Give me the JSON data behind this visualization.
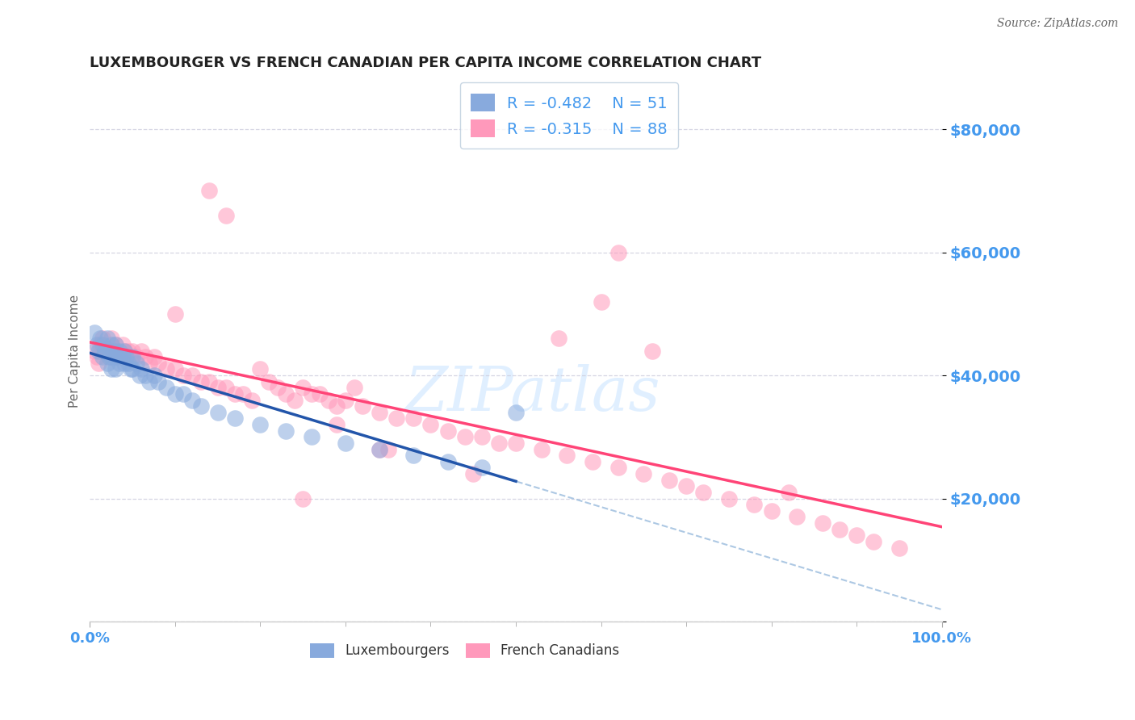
{
  "title": "LUXEMBOURGER VS FRENCH CANADIAN PER CAPITA INCOME CORRELATION CHART",
  "source": "Source: ZipAtlas.com",
  "ylabel": "Per Capita Income",
  "yticks": [
    0,
    20000,
    40000,
    60000,
    80000
  ],
  "ytick_labels": [
    "",
    "$20,000",
    "$40,000",
    "$60,000",
    "$80,000"
  ],
  "xlim": [
    0.0,
    1.0
  ],
  "ylim": [
    0,
    88000
  ],
  "legend_line1": "R = -0.482    N = 51",
  "legend_line2": "R = -0.315    N = 88",
  "legend_label_blue": "Luxembourgers",
  "legend_label_pink": "French Canadians",
  "color_blue": "#88AADD",
  "color_pink": "#FF99BB",
  "color_blue_line": "#2255AA",
  "color_pink_line": "#FF4477",
  "color_dashed": "#99BBDD",
  "title_color": "#222222",
  "axis_tick_color": "#4499EE",
  "source_color": "#666666",
  "blue_x": [
    0.005,
    0.008,
    0.01,
    0.012,
    0.015,
    0.015,
    0.018,
    0.02,
    0.02,
    0.022,
    0.025,
    0.025,
    0.025,
    0.028,
    0.03,
    0.03,
    0.03,
    0.032,
    0.035,
    0.035,
    0.038,
    0.04,
    0.04,
    0.042,
    0.045,
    0.048,
    0.05,
    0.05,
    0.055,
    0.058,
    0.06,
    0.065,
    0.07,
    0.075,
    0.08,
    0.09,
    0.1,
    0.11,
    0.12,
    0.13,
    0.15,
    0.17,
    0.2,
    0.23,
    0.26,
    0.3,
    0.34,
    0.38,
    0.42,
    0.46,
    0.5
  ],
  "blue_y": [
    47000,
    45000,
    44000,
    46000,
    45000,
    43000,
    44000,
    46000,
    42000,
    43000,
    45000,
    43000,
    41000,
    44000,
    45000,
    43000,
    41000,
    43000,
    44000,
    42000,
    43000,
    44000,
    42000,
    43000,
    42000,
    41000,
    43000,
    41000,
    42000,
    40000,
    41000,
    40000,
    39000,
    40000,
    39000,
    38000,
    37000,
    37000,
    36000,
    35000,
    34000,
    33000,
    32000,
    31000,
    30000,
    29000,
    28000,
    27000,
    26000,
    25000,
    34000
  ],
  "pink_x": [
    0.005,
    0.008,
    0.01,
    0.012,
    0.015,
    0.018,
    0.02,
    0.022,
    0.025,
    0.028,
    0.03,
    0.032,
    0.035,
    0.038,
    0.04,
    0.042,
    0.045,
    0.048,
    0.05,
    0.055,
    0.06,
    0.065,
    0.07,
    0.075,
    0.08,
    0.09,
    0.1,
    0.11,
    0.12,
    0.13,
    0.14,
    0.15,
    0.16,
    0.17,
    0.18,
    0.19,
    0.2,
    0.21,
    0.22,
    0.23,
    0.24,
    0.25,
    0.26,
    0.27,
    0.28,
    0.29,
    0.3,
    0.32,
    0.34,
    0.36,
    0.38,
    0.4,
    0.42,
    0.44,
    0.46,
    0.48,
    0.5,
    0.53,
    0.56,
    0.59,
    0.62,
    0.65,
    0.68,
    0.7,
    0.72,
    0.75,
    0.78,
    0.8,
    0.83,
    0.86,
    0.88,
    0.9,
    0.92,
    0.95,
    0.1,
    0.14,
    0.16,
    0.29,
    0.31,
    0.34,
    0.25,
    0.35,
    0.45,
    0.55,
    0.6,
    0.62,
    0.66,
    0.82
  ],
  "pink_y": [
    44000,
    43000,
    42000,
    45000,
    46000,
    44000,
    44000,
    43000,
    46000,
    44000,
    45000,
    44000,
    43000,
    45000,
    44000,
    43000,
    44000,
    43000,
    44000,
    43000,
    44000,
    43000,
    42000,
    43000,
    42000,
    41000,
    41000,
    40000,
    40000,
    39000,
    39000,
    38000,
    38000,
    37000,
    37000,
    36000,
    41000,
    39000,
    38000,
    37000,
    36000,
    38000,
    37000,
    37000,
    36000,
    35000,
    36000,
    35000,
    34000,
    33000,
    33000,
    32000,
    31000,
    30000,
    30000,
    29000,
    29000,
    28000,
    27000,
    26000,
    25000,
    24000,
    23000,
    22000,
    21000,
    20000,
    19000,
    18000,
    17000,
    16000,
    15000,
    14000,
    13000,
    12000,
    50000,
    70000,
    66000,
    32000,
    38000,
    28000,
    20000,
    28000,
    24000,
    46000,
    52000,
    60000,
    44000,
    21000
  ]
}
